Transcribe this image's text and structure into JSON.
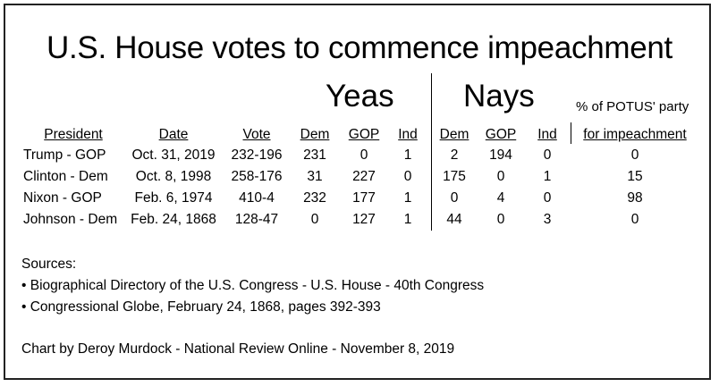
{
  "chart_data": {
    "type": "table",
    "title": "U.S. House votes to commence impeachment",
    "group_labels": {
      "yeas": "Yeas",
      "nays": "Nays",
      "pct_line1": "% of POTUS' party"
    },
    "columns": [
      "President",
      "Date",
      "Vote",
      "Dem",
      "GOP",
      "Ind",
      "Dem",
      "GOP",
      "Ind",
      "for impeachment"
    ],
    "rows": [
      [
        "Trump - GOP",
        "Oct. 31, 2019",
        "232-196",
        "231",
        "0",
        "1",
        "2",
        "194",
        "0",
        "0"
      ],
      [
        "Clinton - Dem",
        "Oct. 8, 1998",
        "258-176",
        "31",
        "227",
        "0",
        "175",
        "0",
        "1",
        "15"
      ],
      [
        "Nixon - GOP",
        "Feb. 6, 1974",
        "410-4",
        "232",
        "177",
        "1",
        "0",
        "4",
        "0",
        "98"
      ],
      [
        "Johnson - Dem",
        "Feb. 24, 1868",
        "128-47",
        "0",
        "127",
        "1",
        "44",
        "0",
        "3",
        "0"
      ]
    ]
  },
  "sources": {
    "heading": "Sources:",
    "items": [
      "• Biographical Directory of the U.S. Congress - U.S. House - 40th Congress",
      "• Congressional Globe, February 24, 1868, pages 392-393"
    ]
  },
  "credit": "Chart by Deroy Murdock - National Review Online - November 8, 2019"
}
